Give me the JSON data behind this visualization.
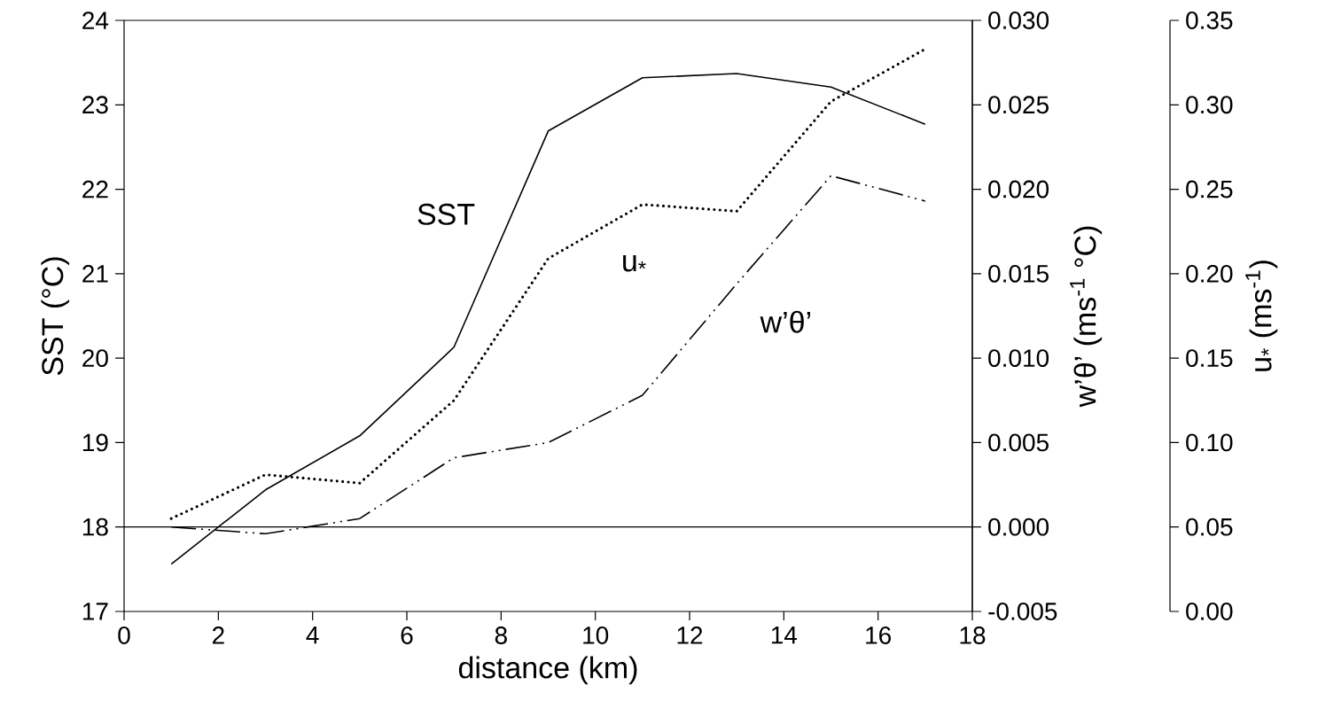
{
  "chart_data": {
    "type": "line",
    "xlabel": "distance (km)",
    "ylabel": "SST (°C)",
    "y2label": "w’θ’ (ms$^{-1}$ °C)",
    "y3label": "u$_{*}$ (ms$^{-1}$)",
    "x": [
      1,
      3,
      5,
      7,
      9,
      11,
      13,
      15,
      17
    ],
    "series": [
      {
        "name": "SST",
        "color": "#000000",
        "line_style": "solid",
        "axis": "y",
        "values": [
          17.56,
          18.44,
          19.08,
          20.13,
          22.69,
          23.32,
          23.37,
          23.21,
          22.77
        ]
      },
      {
        "name": "u$_{*}$",
        "color": "#000000",
        "line_style": "dotted",
        "axis": "y3",
        "values": [
          0.055,
          0.081,
          0.076,
          0.125,
          0.209,
          0.241,
          0.237,
          0.302,
          0.333
        ]
      },
      {
        "name": "w’θ’",
        "color": "#000000",
        "line_style": "dashed",
        "axis": "y2",
        "values": [
          0.0,
          -0.0004,
          0.0005,
          0.0041,
          0.005,
          0.0078,
          0.0144,
          0.0208,
          0.0193
        ]
      }
    ],
    "xlim": [
      0,
      18
    ],
    "xticks": [
      0,
      2,
      4,
      6,
      8,
      10,
      12,
      14,
      16,
      18
    ],
    "ylim": [
      17,
      24
    ],
    "yticks": [
      17,
      18,
      19,
      20,
      21,
      22,
      23,
      24
    ],
    "y2lim": [
      -0.005,
      0.03
    ],
    "y2ticks": [
      {
        "value": -0.005,
        "label": "-0.005"
      },
      {
        "value": 0.0,
        "label": "0.000"
      },
      {
        "value": 0.005,
        "label": "0.005"
      },
      {
        "value": 0.01,
        "label": "0.010"
      },
      {
        "value": 0.015,
        "label": "0.015"
      },
      {
        "value": 0.02,
        "label": "0.020"
      },
      {
        "value": 0.025,
        "label": "0.025"
      },
      {
        "value": 0.03,
        "label": "0.030"
      }
    ],
    "y3lim": [
      0,
      0.35
    ],
    "y3ticks": [
      {
        "value": 0,
        "label": "0.00"
      },
      {
        "value": 0.05,
        "label": "0.05"
      },
      {
        "value": 0.1,
        "label": "0.10"
      },
      {
        "value": 0.15,
        "label": "0.15"
      },
      {
        "value": 0.2,
        "label": "0.20"
      },
      {
        "value": 0.25,
        "label": "0.25"
      },
      {
        "value": 0.3,
        "label": "0.30"
      },
      {
        "value": 0.35,
        "label": "0.35"
      }
    ],
    "ref_lines": [
      {
        "axis": "y",
        "value": 18
      }
    ]
  }
}
